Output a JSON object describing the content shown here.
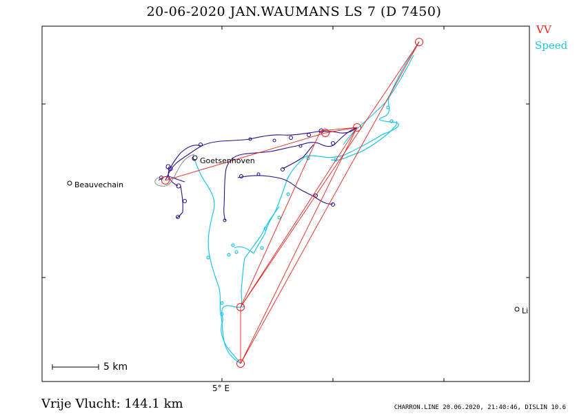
{
  "title": "20-06-2020   JAN.WAUMANS   LS 7 (D 7450)",
  "legend": {
    "vv_label": "VV",
    "speed_label": "Speed",
    "vv_color": "#e8221a",
    "speed_color": "#1ec6e6",
    "track_color": "#2a0f8c"
  },
  "distance_label": "Vrije Vlucht:  144.1 km",
  "footer": "CHARRON.LINE 20.06.2020, 21:40:46, DISLIN 10.6",
  "axis": {
    "lon_label": "5° E"
  },
  "scale": {
    "label": "5 km"
  },
  "places": [
    {
      "name": "Beauvechain"
    },
    {
      "name": "Goetsenhoven"
    },
    {
      "name": "Li"
    }
  ]
}
